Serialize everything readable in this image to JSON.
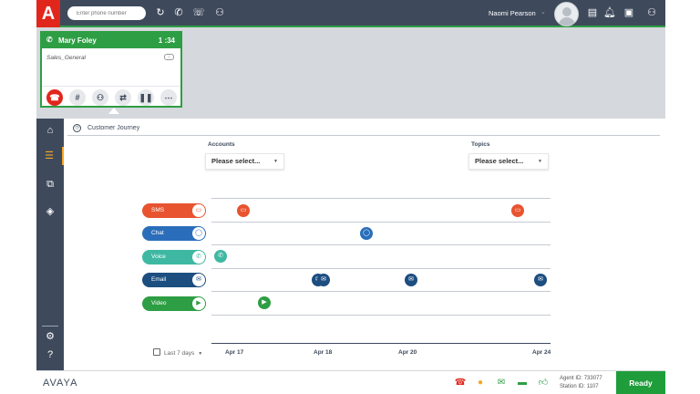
{
  "brand": {
    "logo_letter": "A",
    "footer_brand": "AVAYA",
    "accent": "#e1261c",
    "green": "#2e9e44",
    "navy": "#3e4a5c"
  },
  "topbar": {
    "phone_placeholder": "Enter phone number",
    "icons": [
      "redial-icon",
      "make-call-icon",
      "callback-icon",
      "transfer-user-icon"
    ],
    "agent_name": "Naomi Pearson",
    "right_icons": [
      "clipboard-icon",
      "bell-icon",
      "contact-card-icon",
      "users-icon"
    ]
  },
  "call": {
    "caller": "Mary Foley",
    "timer": "1 :34",
    "queue": "Sales_General",
    "buttons": [
      "end-call",
      "dialpad",
      "conference",
      "transfer",
      "hold",
      "more"
    ]
  },
  "journey": {
    "title": "Customer Journey",
    "accounts_label": "Accounts",
    "accounts_value": "Please select...",
    "topics_label": "Topics",
    "topics_value": "Please select...",
    "range_label": "Last 7 days",
    "channels": [
      {
        "name": "SMS",
        "color": "#e8542f",
        "icon": "sms-icon"
      },
      {
        "name": "Chat",
        "color": "#2a6ebb",
        "icon": "chat-icon"
      },
      {
        "name": "Voice",
        "color": "#3fb8a3",
        "icon": "voice-icon"
      },
      {
        "name": "Email",
        "color": "#1c4e80",
        "icon": "email-icon"
      },
      {
        "name": "Video",
        "color": "#2e9e44",
        "icon": "video-icon"
      }
    ],
    "ticks": [
      "Apr 17",
      "Apr 18",
      "Apr 20",
      "Apr 24"
    ]
  },
  "footer": {
    "agent_id_label": "Agent ID:",
    "agent_id": "733077",
    "station_id_label": "Station ID:",
    "station_id": "1107",
    "ready_label": "Ready"
  }
}
